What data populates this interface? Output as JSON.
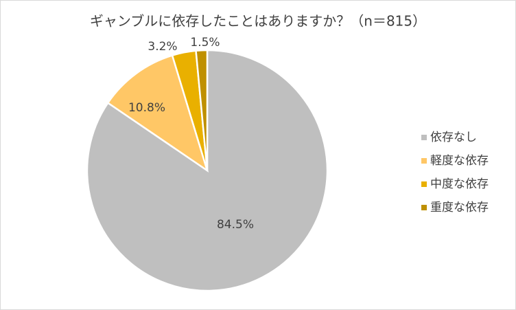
{
  "chart_data": {
    "type": "pie",
    "title": "ギャンブルに依存したことはありますか？（n＝815）",
    "categories": [
      "依存なし",
      "軽度な依存",
      "中度な依存",
      "重度な依存"
    ],
    "values": [
      84.5,
      10.8,
      3.2,
      1.5
    ],
    "value_labels": [
      "84.5%",
      "10.8%",
      "3.2%",
      "1.5%"
    ],
    "colors": [
      "#bfbfbf",
      "#ffc766",
      "#e9b000",
      "#bf9000"
    ],
    "legend": "right"
  }
}
